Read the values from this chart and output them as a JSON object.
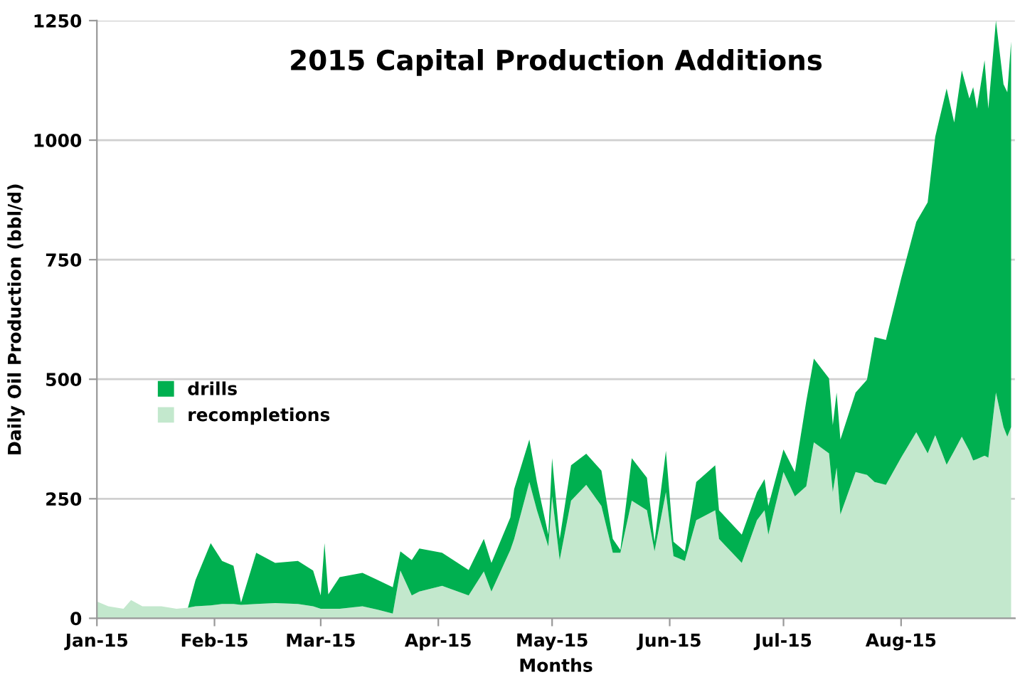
{
  "chart_data": {
    "type": "area",
    "stacked": true,
    "title": "2015 Capital Production Additions",
    "xlabel": "Months",
    "ylabel": "Daily Oil Production (bbl/d)",
    "x": [
      "2015-01-01",
      "2015-01-04",
      "2015-01-08",
      "2015-01-10",
      "2015-01-13",
      "2015-01-18",
      "2015-01-22",
      "2015-01-25",
      "2015-01-27",
      "2015-01-31",
      "2015-02-03",
      "2015-02-06",
      "2015-02-08",
      "2015-02-12",
      "2015-02-17",
      "2015-02-23",
      "2015-02-27",
      "2015-03-01",
      "2015-03-02",
      "2015-03-03",
      "2015-03-06",
      "2015-03-12",
      "2015-03-16",
      "2015-03-20",
      "2015-03-22",
      "2015-03-25",
      "2015-03-27",
      "2015-04-02",
      "2015-04-09",
      "2015-04-13",
      "2015-04-15",
      "2015-04-20",
      "2015-04-21",
      "2015-04-25",
      "2015-04-27",
      "2015-04-30",
      "2015-05-01",
      "2015-05-03",
      "2015-05-06",
      "2015-05-10",
      "2015-05-14",
      "2015-05-17",
      "2015-05-19",
      "2015-05-22",
      "2015-05-26",
      "2015-05-28",
      "2015-05-31",
      "2015-06-02",
      "2015-06-05",
      "2015-06-08",
      "2015-06-13",
      "2015-06-14",
      "2015-06-20",
      "2015-06-24",
      "2015-06-26",
      "2015-06-27",
      "2015-07-01",
      "2015-07-04",
      "2015-07-07",
      "2015-07-09",
      "2015-07-13",
      "2015-07-14",
      "2015-07-15",
      "2015-07-16",
      "2015-07-20",
      "2015-07-23",
      "2015-07-25",
      "2015-07-28",
      "2015-08-01",
      "2015-08-05",
      "2015-08-08",
      "2015-08-10",
      "2015-08-13",
      "2015-08-15",
      "2015-08-17",
      "2015-08-19",
      "2015-08-20",
      "2015-08-21",
      "2015-08-23",
      "2015-08-24",
      "2015-08-26",
      "2015-08-28",
      "2015-08-29",
      "2015-08-30"
    ],
    "series": [
      {
        "name": "recompletions",
        "color": "#c3e8cd",
        "values": [
          35,
          25,
          20,
          38,
          25,
          25,
          20,
          22,
          25,
          27,
          30,
          30,
          28,
          30,
          32,
          30,
          25,
          20,
          20,
          20,
          20,
          25,
          18,
          10,
          100,
          48,
          56,
          68,
          48,
          98,
          56,
          143,
          166,
          285,
          226,
          150,
          255,
          122,
          246,
          279,
          235,
          137,
          137,
          246,
          226,
          140,
          264,
          130,
          120,
          205,
          226,
          166,
          116,
          205,
          226,
          175,
          306,
          255,
          276,
          368,
          345,
          264,
          315,
          217,
          306,
          300,
          285,
          279,
          336,
          389,
          345,
          383,
          321,
          350,
          380,
          350,
          330,
          333,
          340,
          336,
          472,
          400,
          380,
          400
        ]
      },
      {
        "name": "drills",
        "color": "#00b050",
        "values": [
          0,
          0,
          0,
          0,
          0,
          0,
          0,
          0,
          55,
          130,
          90,
          80,
          5,
          107,
          84,
          90,
          75,
          28,
          137,
          30,
          66,
          70,
          62,
          55,
          40,
          74,
          90,
          69,
          53,
          68,
          60,
          68,
          104,
          89,
          59,
          25,
          80,
          44,
          74,
          65,
          74,
          29,
          6,
          89,
          68,
          20,
          86,
          30,
          20,
          80,
          94,
          60,
          59,
          59,
          65,
          60,
          47,
          51,
          178,
          175,
          157,
          140,
          157,
          157,
          166,
          199,
          303,
          303,
          374,
          440,
          525,
          624,
          787,
          687,
          766,
          737,
          781,
          733,
          827,
          730,
          778,
          717,
          720,
          806
        ]
      }
    ],
    "xlim": [
      "2015-01-01",
      "2015-08-31"
    ],
    "xticks": [
      {
        "value": "2015-01-01",
        "label": "Jan-15"
      },
      {
        "value": "2015-02-01",
        "label": "Feb-15"
      },
      {
        "value": "2015-03-01",
        "label": "Mar-15"
      },
      {
        "value": "2015-04-01",
        "label": "Apr-15"
      },
      {
        "value": "2015-05-01",
        "label": "May-15"
      },
      {
        "value": "2015-06-01",
        "label": "Jun-15"
      },
      {
        "value": "2015-07-01",
        "label": "Jul-15"
      },
      {
        "value": "2015-08-01",
        "label": "Aug-15"
      }
    ],
    "ylim": [
      0,
      1250
    ],
    "yticks": [
      0,
      250,
      500,
      750,
      1000,
      1250
    ],
    "grid": "y",
    "legend": "left"
  }
}
